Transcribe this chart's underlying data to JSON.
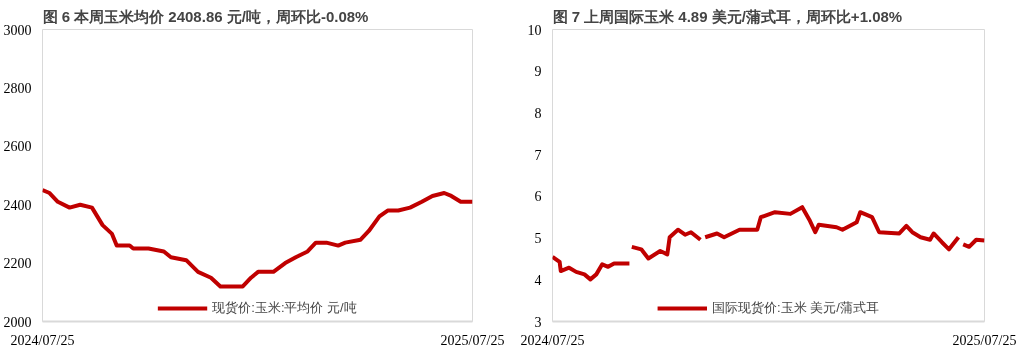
{
  "chart_data": [
    {
      "type": "line",
      "title": "图 6   本周玉米均价 2408.86 元/吨，周环比-0.08%",
      "x": [
        "2024-07-25",
        "2024-07-31",
        "2024-08-07",
        "2024-08-17",
        "2024-08-26",
        "2024-09-05",
        "2024-09-14",
        "2024-09-22",
        "2024-09-26",
        "2024-10-07",
        "2024-10-10",
        "2024-10-23",
        "2024-11-05",
        "2024-11-11",
        "2024-11-24",
        "2024-12-04",
        "2024-12-15",
        "2024-12-23",
        "2025-01-02",
        "2025-01-11",
        "2025-01-18",
        "2025-01-24",
        "2025-02-06",
        "2025-02-16",
        "2025-02-25",
        "2025-03-07",
        "2025-03-14",
        "2025-03-23",
        "2025-04-02",
        "2025-04-08",
        "2025-04-21",
        "2025-04-28",
        "2025-05-07",
        "2025-05-14",
        "2025-05-23",
        "2025-06-02",
        "2025-06-12",
        "2025-06-21",
        "2025-07-01",
        "2025-07-07",
        "2025-07-15",
        "2025-07-25"
      ],
      "series": [
        {
          "name": "现货价:玉米:平均价 元/吨",
          "color": "#c00000",
          "values": [
            2450,
            2440,
            2410,
            2390,
            2400,
            2390,
            2330,
            2300,
            2260,
            2260,
            2250,
            2250,
            2240,
            2220,
            2210,
            2170,
            2150,
            2120,
            2120,
            2120,
            2150,
            2170,
            2170,
            2200,
            2220,
            2240,
            2270,
            2270,
            2260,
            2270,
            2280,
            2310,
            2360,
            2380,
            2380,
            2390,
            2410,
            2430,
            2440,
            2430,
            2410,
            2410
          ]
        }
      ],
      "xlim": [
        "2024-07-25",
        "2025-07-25"
      ],
      "xticks": [
        {
          "value": "2024-07-25",
          "label": "2024/07/25"
        },
        {
          "value": "2025-07-25",
          "label": "2025/07/25"
        }
      ],
      "ylim": [
        2000,
        3000
      ],
      "yticks": [
        2000,
        2200,
        2400,
        2600,
        2800,
        3000
      ],
      "grid": false,
      "legend": "bottom",
      "marker": "none",
      "line_style": "solid"
    },
    {
      "type": "line",
      "title": "图 7 上周国际玉米 4.89 美元/蒲式耳，周环比+1.08%",
      "x": [
        "2024-07-25",
        "2024-07-31",
        "2024-08-01",
        "2024-08-08",
        "2024-08-14",
        "2024-08-21",
        "2024-08-26",
        "2024-08-31",
        "2024-09-05",
        "2024-09-10",
        "2024-09-15",
        "2024-09-28",
        "2024-09-29",
        "2024-09-30",
        "2024-10-08",
        "2024-10-14",
        "2024-10-24",
        "2024-10-30",
        "2024-11-01",
        "2024-11-08",
        "2024-11-14",
        "2024-11-19",
        "2024-11-27",
        "2024-11-29",
        "2024-12-01",
        "2024-12-11",
        "2024-12-17",
        "2024-12-30",
        "2025-01-14",
        "2025-01-17",
        "2025-01-29",
        "2025-02-11",
        "2025-02-21",
        "2025-02-27",
        "2025-03-04",
        "2025-03-07",
        "2025-03-22",
        "2025-03-27",
        "2025-04-08",
        "2025-04-11",
        "2025-04-21",
        "2025-04-27",
        "2025-05-14",
        "2025-05-20",
        "2025-05-25",
        "2025-06-01",
        "2025-06-09",
        "2025-06-12",
        "2025-06-19",
        "2025-06-25",
        "2025-07-03",
        "2025-07-05",
        "2025-07-07",
        "2025-07-12",
        "2025-07-18",
        "2025-07-25"
      ],
      "series": [
        {
          "name": "国际现货价:玉米 美元/蒲式耳",
          "color": "#c00000",
          "values": [
            4.55,
            4.43,
            4.21,
            4.29,
            4.19,
            4.13,
            4.01,
            4.13,
            4.37,
            4.31,
            4.39,
            4.39,
            null,
            4.79,
            4.73,
            4.51,
            4.69,
            4.61,
            5.02,
            5.2,
            5.08,
            5.14,
            4.96,
            null,
            5.02,
            5.11,
            5.02,
            5.2,
            5.2,
            5.5,
            5.62,
            5.58,
            5.74,
            5.44,
            5.14,
            5.32,
            5.26,
            5.2,
            5.38,
            5.62,
            5.5,
            5.14,
            5.11,
            5.29,
            5.14,
            5.02,
            4.96,
            5.11,
            4.9,
            4.73,
            5.02,
            null,
            4.85,
            4.79,
            4.96,
            4.94
          ]
        }
      ],
      "xlim": [
        "2024-07-25",
        "2025-07-25"
      ],
      "xticks": [
        {
          "value": "2024-07-25",
          "label": "2024/07/25"
        },
        {
          "value": "2025-07-25",
          "label": "2025/07/25"
        }
      ],
      "ylim": [
        3,
        10
      ],
      "yticks": [
        3,
        4,
        5,
        6,
        7,
        8,
        9,
        10
      ],
      "grid": false,
      "legend": "bottom",
      "marker": "none",
      "line_style": "solid"
    }
  ]
}
